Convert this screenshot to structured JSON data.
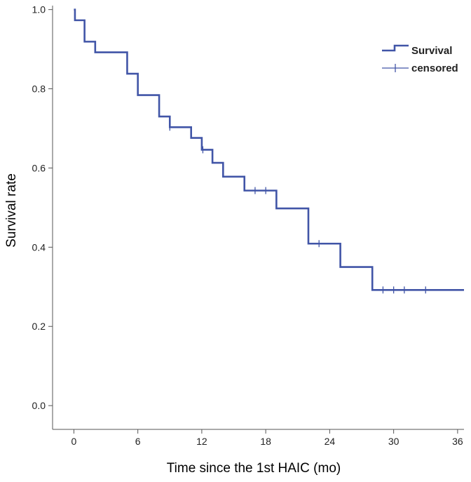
{
  "chart_data": {
    "type": "line",
    "subtype": "kaplan-meier-step",
    "title": "",
    "xlabel": "Time since the 1st HAIC (mo)",
    "ylabel": "Survival rate",
    "xlim": [
      -2,
      36.6
    ],
    "ylim": [
      -0.06,
      1.01
    ],
    "xticks": [
      0,
      6,
      12,
      18,
      24,
      30,
      36
    ],
    "yticks": [
      0.0,
      0.2,
      0.4,
      0.6,
      0.8,
      1.0
    ],
    "ytick_labels": [
      "0.0",
      "0.2",
      "0.4",
      "0.6",
      "0.8",
      "1.0"
    ],
    "grid": false,
    "legend_position": "top-right",
    "series": [
      {
        "name": "Survival",
        "steps": [
          [
            0,
            1.0
          ],
          [
            0.1,
            0.973
          ],
          [
            1,
            0.919
          ],
          [
            2,
            0.892
          ],
          [
            5,
            0.838
          ],
          [
            6,
            0.784
          ],
          [
            8,
            0.73
          ],
          [
            9,
            0.703
          ],
          [
            11,
            0.676
          ],
          [
            12,
            0.646
          ],
          [
            13,
            0.613
          ],
          [
            14,
            0.578
          ],
          [
            16,
            0.543
          ],
          [
            19,
            0.498
          ],
          [
            22,
            0.409
          ],
          [
            25,
            0.35
          ],
          [
            28,
            0.292
          ],
          [
            36.6,
            0.292
          ]
        ]
      },
      {
        "name": "censored",
        "points": [
          [
            9,
            0.703
          ],
          [
            12.1,
            0.646
          ],
          [
            17,
            0.543
          ],
          [
            18,
            0.543
          ],
          [
            23,
            0.409
          ],
          [
            29,
            0.292
          ],
          [
            30,
            0.292
          ],
          [
            31,
            0.292
          ],
          [
            33,
            0.292
          ]
        ]
      }
    ]
  },
  "colors": {
    "line": "#4155a7",
    "axis": "#555555",
    "text": "#222222"
  }
}
